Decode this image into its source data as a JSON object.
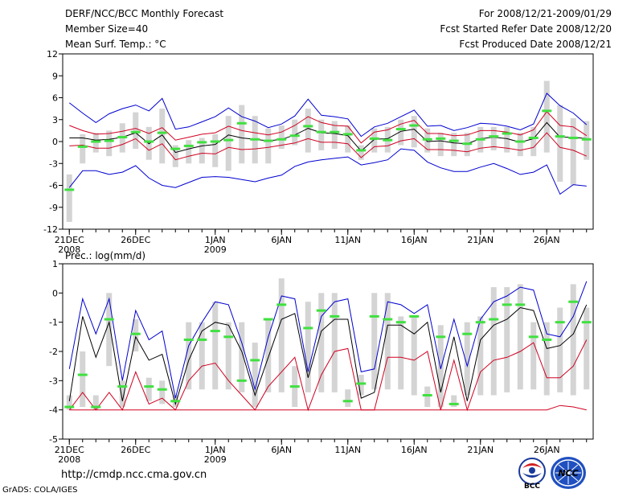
{
  "header": {
    "title": "DERF/NCC/BCC Monthly Forecast",
    "member_size": "Member Size=40",
    "variable": "Mean Surf. Temp.: °C",
    "for_period": "For 2008/12/21-2009/01/29",
    "fcst_started": "Fcst Started Refer Date 2008/12/20",
    "fcst_produced": "Fcst Produced Date 2008/12/21"
  },
  "footer": {
    "url": "http://cmdp.ncc.cma.gov.cn",
    "grads": "GrADS: COLA/IGES",
    "logo_bcc_text": "BCC",
    "logo_ncc_text": "NCC"
  },
  "colors": {
    "max_line": "#0000d0",
    "min_line": "#d00020",
    "mean_line": "#000000",
    "box": "#d4d4d4",
    "median": "#40e040"
  },
  "chart_data": [
    {
      "type": "line",
      "title": "Mean Surf. Temp.: °C",
      "ylim": [
        -12,
        12
      ],
      "yticks": [
        -12,
        -9,
        -6,
        -3,
        0,
        3,
        6,
        9,
        12
      ],
      "ytick_labels": [
        "-12",
        "-9",
        "-6",
        "-3",
        "0",
        "3",
        "6",
        "9",
        "12"
      ],
      "xticks": [
        {
          "day": 1,
          "label": "21DEC",
          "sub": "2008"
        },
        {
          "day": 6,
          "label": "26DEC",
          "sub": ""
        },
        {
          "day": 12,
          "label": "1JAN",
          "sub": "2009"
        },
        {
          "day": 17,
          "label": "6JAN",
          "sub": ""
        },
        {
          "day": 22,
          "label": "11JAN",
          "sub": ""
        },
        {
          "day": 27,
          "label": "16JAN",
          "sub": ""
        },
        {
          "day": 32,
          "label": "21JAN",
          "sub": ""
        },
        {
          "day": 37,
          "label": "26JAN",
          "sub": ""
        }
      ],
      "x": [
        1,
        2,
        3,
        4,
        5,
        6,
        7,
        8,
        9,
        10,
        11,
        12,
        13,
        14,
        15,
        16,
        17,
        18,
        19,
        20,
        21,
        22,
        23,
        24,
        25,
        26,
        27,
        28,
        29,
        30,
        31,
        32,
        33,
        34,
        35,
        36,
        37,
        38,
        39,
        40
      ],
      "series": [
        {
          "name": "max",
          "values": [
            5.3,
            3.9,
            2.6,
            3.8,
            4.5,
            5.0,
            4.2,
            5.9,
            1.7,
            2.0,
            2.7,
            3.4,
            4.6,
            3.4,
            2.8,
            1.9,
            2.4,
            3.5,
            5.8,
            3.6,
            3.4,
            3.1,
            0.7,
            2.0,
            2.5,
            3.4,
            4.3,
            2.1,
            2.2,
            1.5,
            1.9,
            2.5,
            2.4,
            2.1,
            1.6,
            2.4,
            6.6,
            4.9,
            3.9,
            2.3
          ]
        },
        {
          "name": "upper",
          "values": [
            2.2,
            1.5,
            1.0,
            1.1,
            1.4,
            1.8,
            1.1,
            1.9,
            0.2,
            0.6,
            1.0,
            1.2,
            2.1,
            1.5,
            1.2,
            0.9,
            1.3,
            2.2,
            3.4,
            2.6,
            2.2,
            2.1,
            -0.2,
            1.3,
            1.6,
            2.4,
            2.9,
            1.1,
            1.1,
            0.8,
            0.9,
            1.5,
            1.5,
            1.3,
            0.9,
            1.6,
            4.1,
            2.2,
            2.0,
            0.8
          ]
        },
        {
          "name": "mean",
          "values": [
            0.5,
            0.5,
            0.2,
            0.3,
            0.6,
            1.2,
            -0.3,
            0.9,
            -1.5,
            -1.0,
            -0.6,
            -0.4,
            0.9,
            0.5,
            0.3,
            0.1,
            0.3,
            0.9,
            1.8,
            1.2,
            1.1,
            0.8,
            -1.3,
            0.3,
            0.4,
            1.4,
            1.7,
            0.0,
            0.1,
            -0.2,
            -0.3,
            0.4,
            0.6,
            0.4,
            -0.1,
            0.4,
            2.6,
            0.6,
            0.6,
            0.4
          ]
        },
        {
          "name": "lower",
          "values": [
            -0.6,
            -0.5,
            -0.9,
            -0.9,
            -0.4,
            0.4,
            -1.2,
            -0.3,
            -2.5,
            -2.0,
            -1.6,
            -1.7,
            -0.8,
            -1.1,
            -1.0,
            -0.8,
            -0.5,
            -0.2,
            0.4,
            -0.1,
            -0.1,
            -0.3,
            -2.2,
            -0.7,
            -0.6,
            0.1,
            0.4,
            -1.1,
            -1.1,
            -1.2,
            -1.4,
            -0.9,
            -0.7,
            -0.9,
            -1.2,
            -0.8,
            1.2,
            -0.8,
            -1.2,
            -2.0
          ]
        },
        {
          "name": "min",
          "values": [
            -6.3,
            -4.0,
            -4.0,
            -4.5,
            -4.2,
            -3.3,
            -5.0,
            -6.0,
            -6.3,
            -5.6,
            -4.9,
            -4.8,
            -4.9,
            -5.2,
            -5.5,
            -5.0,
            -4.6,
            -3.4,
            -2.8,
            -2.5,
            -2.3,
            -2.1,
            -3.2,
            -2.9,
            -2.5,
            -1.0,
            -1.2,
            -2.8,
            -3.6,
            -4.1,
            -4.1,
            -3.5,
            -3.0,
            -3.7,
            -4.5,
            -4.2,
            -3.2,
            -7.2,
            -5.9,
            -6.1
          ]
        },
        {
          "name": "median",
          "values": [
            -6.6,
            -0.7,
            0.0,
            0.1,
            0.6,
            1.3,
            0.0,
            1.2,
            -1.0,
            -0.6,
            -0.1,
            0.0,
            0.2,
            2.5,
            0.3,
            0.1,
            0.3,
            0.8,
            2.1,
            1.3,
            1.3,
            1.0,
            -1.2,
            0.4,
            0.2,
            1.7,
            2.2,
            0.3,
            0.4,
            0.1,
            -0.3,
            0.3,
            0.7,
            1.1,
            0.0,
            0.5,
            4.2,
            0.7,
            0.5,
            0.3
          ]
        },
        {
          "name": "box_top",
          "values": [
            -4.5,
            1.0,
            1.2,
            1.5,
            2.5,
            4.0,
            2.0,
            4.5,
            -0.5,
            0.2,
            0.5,
            1.0,
            3.5,
            5.0,
            3.5,
            1.8,
            2.2,
            3.0,
            4.5,
            3.0,
            2.8,
            2.2,
            -0.5,
            1.8,
            2.0,
            3.0,
            3.5,
            1.8,
            1.2,
            1.2,
            1.2,
            2.0,
            2.0,
            2.0,
            1.2,
            2.0,
            8.3,
            5.0,
            3.2,
            2.8
          ]
        },
        {
          "name": "box_bottom",
          "values": [
            -11.0,
            -3.0,
            -1.5,
            -2.0,
            -1.5,
            -1.0,
            -2.5,
            -3.0,
            -3.5,
            -3.0,
            -3.0,
            -3.5,
            -4.0,
            -3.0,
            -3.0,
            -3.0,
            -1.0,
            -0.5,
            -1.5,
            -1.2,
            -1.0,
            -1.5,
            -2.5,
            -1.5,
            -1.5,
            -0.5,
            -0.8,
            -1.5,
            -2.0,
            -2.0,
            -2.0,
            -1.5,
            -1.2,
            -1.5,
            -2.0,
            -2.0,
            -1.5,
            -5.5,
            -6.0,
            -2.5
          ]
        }
      ]
    },
    {
      "type": "line",
      "title": "Prec.: log(mm/d)",
      "ylim": [
        -5,
        1
      ],
      "yticks": [
        -5,
        -4,
        -3,
        -2,
        -1,
        0,
        1
      ],
      "ytick_labels": [
        "-5",
        "-4",
        "-3",
        "-2",
        "-1",
        "0",
        "1"
      ],
      "xticks": [
        {
          "day": 1,
          "label": "21DEC",
          "sub": "2008"
        },
        {
          "day": 6,
          "label": "26DEC",
          "sub": ""
        },
        {
          "day": 12,
          "label": "1JAN",
          "sub": "2009"
        },
        {
          "day": 17,
          "label": "6JAN",
          "sub": ""
        },
        {
          "day": 22,
          "label": "11JAN",
          "sub": ""
        },
        {
          "day": 27,
          "label": "16JAN",
          "sub": ""
        },
        {
          "day": 32,
          "label": "21JAN",
          "sub": ""
        },
        {
          "day": 37,
          "label": "26JAN",
          "sub": ""
        }
      ],
      "x": [
        1,
        2,
        3,
        4,
        5,
        6,
        7,
        8,
        9,
        10,
        11,
        12,
        13,
        14,
        15,
        16,
        17,
        18,
        19,
        20,
        21,
        22,
        23,
        24,
        25,
        26,
        27,
        28,
        29,
        30,
        31,
        32,
        33,
        34,
        35,
        36,
        37,
        38,
        39,
        40
      ],
      "series": [
        {
          "name": "max",
          "values": [
            -2.6,
            -0.2,
            -1.4,
            -0.2,
            -3.0,
            -0.6,
            -1.6,
            -1.3,
            -3.6,
            -1.8,
            -1.0,
            -0.3,
            -0.4,
            -1.7,
            -3.3,
            -1.5,
            -0.1,
            -0.2,
            -2.7,
            -0.8,
            -0.3,
            -0.2,
            -2.7,
            -2.6,
            -0.3,
            -0.4,
            -0.7,
            -0.4,
            -2.6,
            -0.9,
            -2.5,
            -0.9,
            -0.3,
            -0.1,
            0.2,
            0.1,
            -1.4,
            -1.5,
            -0.8,
            0.4
          ]
        },
        {
          "name": "mean",
          "values": [
            -3.7,
            -0.8,
            -2.2,
            -1.0,
            -3.7,
            -1.5,
            -2.3,
            -2.1,
            -3.8,
            -2.3,
            -1.3,
            -1.0,
            -1.1,
            -2.0,
            -3.5,
            -2.2,
            -0.9,
            -0.7,
            -2.9,
            -1.3,
            -0.9,
            -0.9,
            -3.6,
            -3.4,
            -1.1,
            -1.1,
            -1.4,
            -1.0,
            -3.4,
            -1.5,
            -3.7,
            -1.6,
            -1.1,
            -0.9,
            -0.5,
            -0.6,
            -1.9,
            -1.8,
            -1.4,
            -0.4
          ]
        },
        {
          "name": "min",
          "values": [
            -4.0,
            -3.4,
            -4.0,
            -3.4,
            -4.0,
            -2.7,
            -3.8,
            -3.6,
            -4.0,
            -3.0,
            -2.5,
            -2.4,
            -3.0,
            -3.5,
            -4.0,
            -3.2,
            -2.7,
            -2.2,
            -4.0,
            -2.8,
            -2.0,
            -1.9,
            -4.0,
            -4.0,
            -2.2,
            -2.2,
            -2.3,
            -2.0,
            -4.0,
            -2.3,
            -4.0,
            -2.7,
            -2.3,
            -2.2,
            -2.0,
            -1.7,
            -2.9,
            -2.9,
            -2.5,
            -1.6
          ]
        },
        {
          "name": "zero_floor",
          "values": [
            -4.0,
            -4.0,
            -4.0,
            -4.0,
            -4.0,
            -4.0,
            -4.0,
            -4.0,
            -4.0,
            -4.0,
            -4.0,
            -4.0,
            -4.0,
            -4.0,
            -4.0,
            -4.0,
            -4.0,
            -4.0,
            -4.0,
            -4.0,
            -4.0,
            -4.0,
            -4.0,
            -4.0,
            -4.0,
            -4.0,
            -4.0,
            -4.0,
            -4.0,
            -4.0,
            -4.0,
            -4.0,
            -4.0,
            -4.0,
            -4.0,
            -4.0,
            -4.0,
            -3.85,
            -3.9,
            -4.0
          ]
        },
        {
          "name": "median",
          "values": [
            -3.9,
            -2.8,
            -3.9,
            -0.9,
            -3.2,
            -1.4,
            -3.2,
            -3.3,
            -3.7,
            -1.6,
            -1.6,
            -1.3,
            -1.5,
            -3.0,
            -2.3,
            -0.9,
            -0.4,
            -3.2,
            -1.2,
            -0.6,
            -0.8,
            -3.7,
            -3.1,
            -0.8,
            -0.9,
            -1.0,
            -0.8,
            -3.5,
            -1.5,
            -3.8,
            -1.4,
            -1.0,
            -0.9,
            -0.4,
            -0.4,
            -1.5,
            -1.6,
            -1.0,
            -0.3,
            -1.0
          ]
        },
        {
          "name": "box_top",
          "values": [
            -3.5,
            -2.0,
            -3.5,
            0.0,
            -3.0,
            -0.9,
            -2.9,
            -3.0,
            -3.5,
            -1.0,
            -1.0,
            -0.3,
            -1.0,
            -1.0,
            -1.7,
            -0.9,
            0.5,
            -2.5,
            -0.3,
            0.0,
            0.0,
            -3.3,
            -2.8,
            0.0,
            0.0,
            -0.8,
            -0.8,
            -3.2,
            -1.1,
            -3.5,
            -1.0,
            -0.8,
            0.2,
            0.2,
            0.3,
            -1.0,
            -1.0,
            -0.5,
            0.3,
            -0.5
          ]
        },
        {
          "name": "box_bottom",
          "values": [
            -4.0,
            -3.9,
            -4.0,
            -2.5,
            -3.9,
            -2.0,
            -3.7,
            -3.8,
            -3.9,
            -3.3,
            -3.3,
            -3.3,
            -3.3,
            -3.4,
            -3.9,
            -3.4,
            -3.4,
            -3.9,
            -3.4,
            -3.4,
            -3.4,
            -3.9,
            -3.5,
            -3.3,
            -3.3,
            -3.3,
            -3.5,
            -3.9,
            -3.9,
            -3.9,
            -3.5,
            -3.5,
            -3.5,
            -3.4,
            -3.3,
            -3.3,
            -3.5,
            -3.4,
            -3.5,
            -3.3
          ]
        }
      ]
    }
  ]
}
